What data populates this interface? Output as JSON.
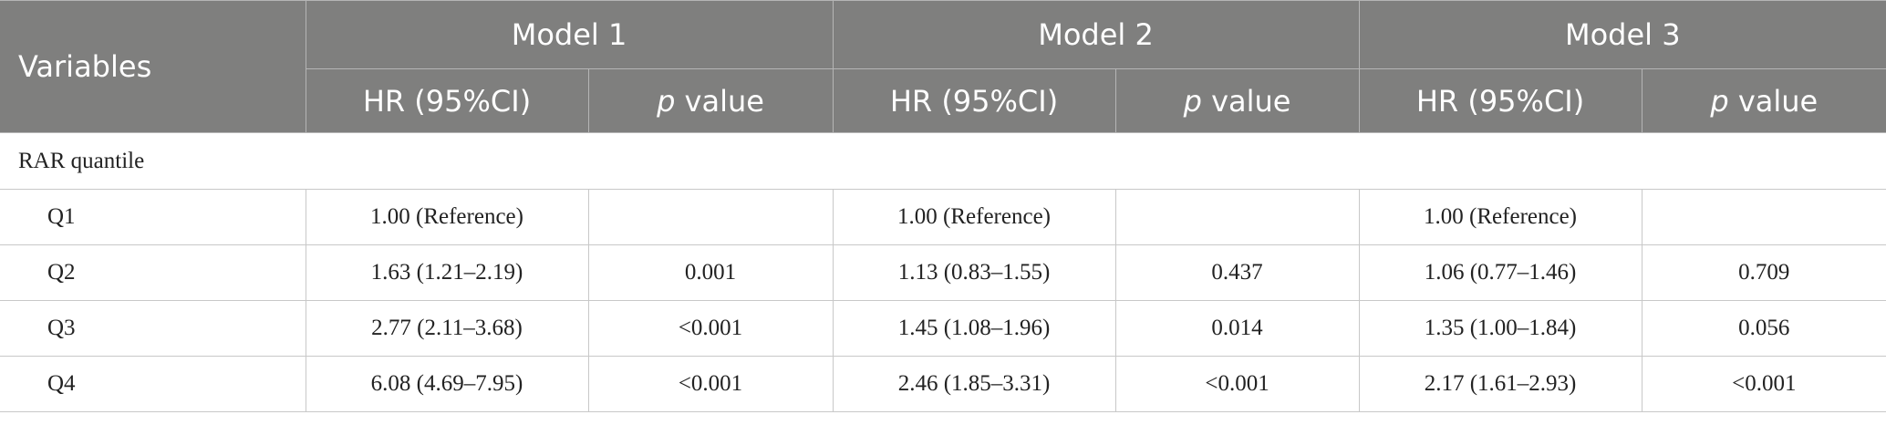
{
  "table": {
    "header": {
      "variables": "Variables",
      "models": [
        "Model 1",
        "Model 2",
        "Model 3"
      ],
      "subheaders": [
        {
          "hr": "HR (95%CI)",
          "p": {
            "em": "p",
            "rest": "value"
          }
        },
        {
          "hr": "HR (95%CI)",
          "p": {
            "em": "p",
            "rest": "value"
          }
        },
        {
          "hr": "HR (95%CI)",
          "p": {
            "em": "p",
            "rest": "value"
          }
        }
      ]
    },
    "section": "RAR quantile",
    "rows": [
      [
        "Q1",
        "1.00 (Reference)",
        null,
        "1.00 (Reference)",
        null,
        "1.00 (Reference)",
        null
      ],
      [
        "Q2",
        "1.63 (1.21–2.19)",
        "0.001",
        "1.13 (0.83–1.55)",
        "0.437",
        "1.06 (0.77–1.46)",
        "0.709"
      ],
      [
        "Q3",
        "2.77 (2.11–3.68)",
        "<0.001",
        "1.45 (1.08–1.96)",
        "0.014",
        "1.35 (1.00–1.84)",
        "0.056"
      ],
      [
        "Q4",
        "6.08 (4.69–7.95)",
        "<0.001",
        "2.46 (1.85–3.31)",
        "<0.001",
        "2.17 (1.61–2.93)",
        "<0.001"
      ]
    ]
  }
}
